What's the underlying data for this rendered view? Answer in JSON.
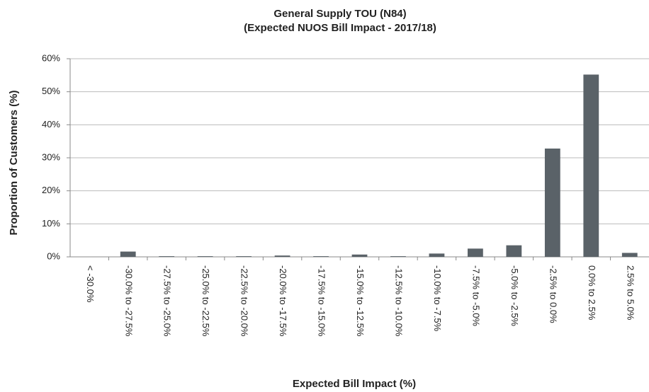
{
  "chart_data": {
    "type": "bar",
    "title": [
      "General Supply TOU (N84)",
      "(Expected NUOS Bill Impact - 2017/18)"
    ],
    "x_label": "Expected Bill Impact (%)",
    "y_label": "Proportion of Customers (%)",
    "categories": [
      "< -30.0%",
      "-30.0% to -27.5%",
      "-27.5% to -25.0%",
      "-25.0% to -22.5%",
      "-22.5% to -20.0%",
      "-20.0% to -17.5%",
      "-17.5% to -15.0%",
      "-15.0% to -12.5%",
      "-12.5% to -10.0%",
      "-10.0% to -7.5%",
      "-7.5% to -5.0%",
      "-5.0% to -2.5%",
      "-2.5% to 0.0%",
      "0.0% to 2.5%",
      "2.5% to 5.0%"
    ],
    "values": [
      0,
      1.6,
      0.2,
      0.2,
      0.2,
      0.4,
      0.2,
      0.7,
      0.2,
      1.0,
      2.5,
      3.5,
      32.8,
      55.2,
      1.2
    ],
    "color": "#5a6268",
    "ylim": [
      0,
      60
    ],
    "yticks": [
      {
        "value": 0,
        "label": "0%"
      },
      {
        "value": 10,
        "label": "10%"
      },
      {
        "value": 20,
        "label": "20%"
      },
      {
        "value": 30,
        "label": "30%"
      },
      {
        "value": 40,
        "label": "40%"
      },
      {
        "value": 50,
        "label": "50%"
      },
      {
        "value": 60,
        "label": "60%"
      }
    ],
    "grid": true
  }
}
